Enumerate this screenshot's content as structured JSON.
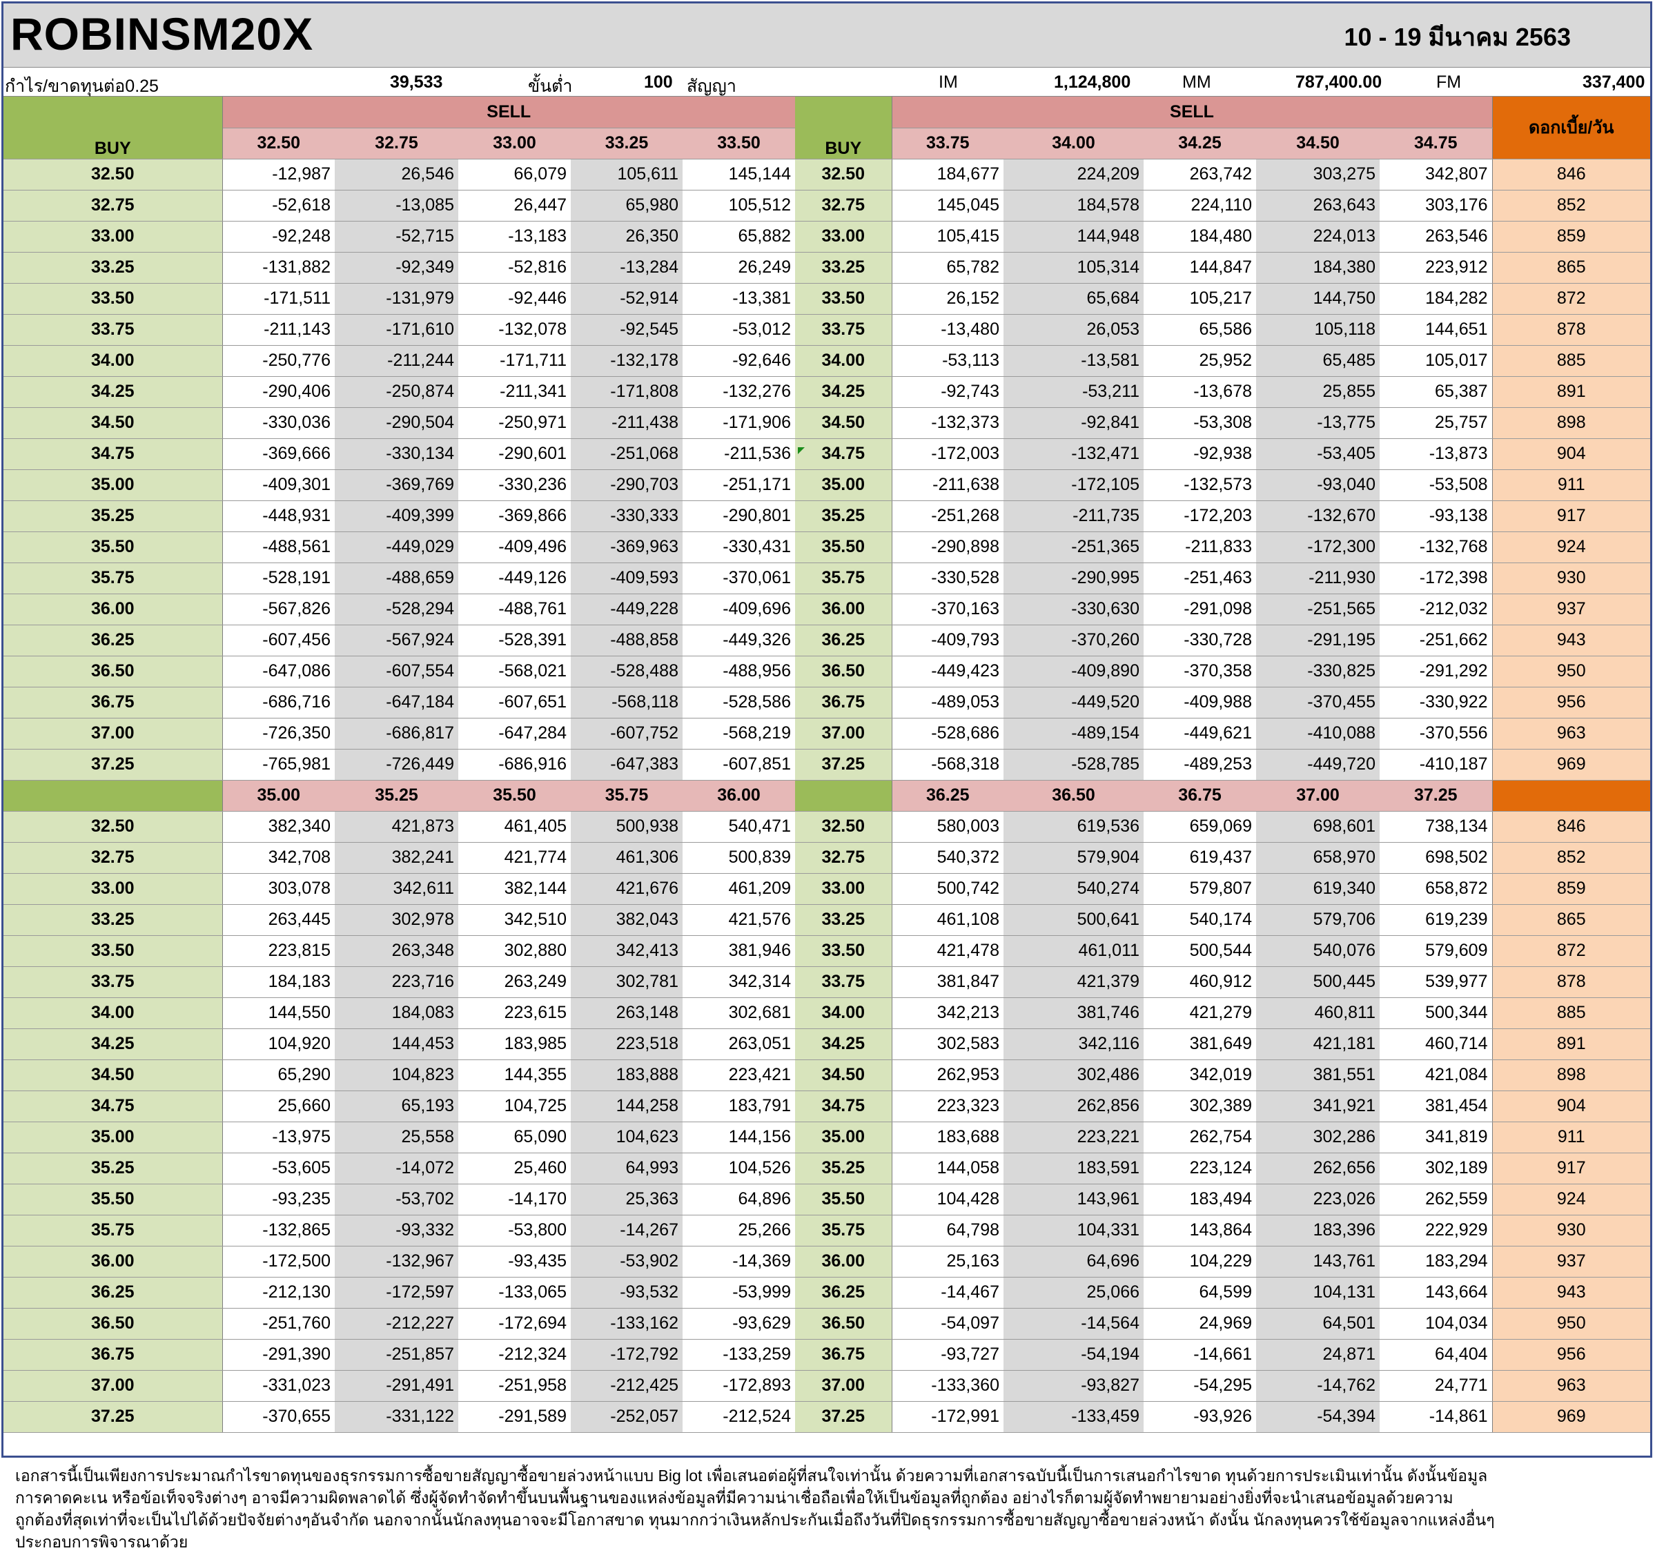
{
  "header": {
    "title": "ROBINSM20X",
    "date_range": "10  -  19 มีนาคม 2563"
  },
  "info": {
    "profit_label": "กำไร/ขาดทุนต่อ0.25",
    "profit_value": "39,533",
    "min_label": "ขั้นต่ำ",
    "min_value": "100",
    "contract_label": "สัญญา",
    "im_label": "IM",
    "im_value": "1,124,800",
    "mm_label": "MM",
    "mm_value": "787,400.00",
    "fm_label": "FM",
    "fm_value": "337,400"
  },
  "table": {
    "buy_label": "BUY",
    "sell_label": "SELL",
    "fee_label": "ดอกเบี้ย/วัน",
    "buy_prices": [
      "32.50",
      "32.75",
      "33.00",
      "33.25",
      "33.50",
      "33.75",
      "34.00",
      "34.25",
      "34.50",
      "34.75",
      "35.00",
      "35.25",
      "35.50",
      "35.75",
      "36.00",
      "36.25",
      "36.50",
      "36.75",
      "37.00",
      "37.25"
    ],
    "fees": [
      "846",
      "852",
      "859",
      "865",
      "872",
      "878",
      "885",
      "891",
      "898",
      "904",
      "911",
      "917",
      "924",
      "930",
      "937",
      "943",
      "950",
      "956",
      "963",
      "969"
    ],
    "top": {
      "sell_left": [
        "32.50",
        "32.75",
        "33.00",
        "33.25",
        "33.50"
      ],
      "sell_right": [
        "33.75",
        "34.00",
        "34.25",
        "34.50",
        "34.75"
      ],
      "rows": [
        [
          "-12,987",
          "26,546",
          "66,079",
          "105,611",
          "145,144",
          "184,677",
          "224,209",
          "263,742",
          "303,275",
          "342,807"
        ],
        [
          "-52,618",
          "-13,085",
          "26,447",
          "65,980",
          "105,512",
          "145,045",
          "184,578",
          "224,110",
          "263,643",
          "303,176"
        ],
        [
          "-92,248",
          "-52,715",
          "-13,183",
          "26,350",
          "65,882",
          "105,415",
          "144,948",
          "184,480",
          "224,013",
          "263,546"
        ],
        [
          "-131,882",
          "-92,349",
          "-52,816",
          "-13,284",
          "26,249",
          "65,782",
          "105,314",
          "144,847",
          "184,380",
          "223,912"
        ],
        [
          "-171,511",
          "-131,979",
          "-92,446",
          "-52,914",
          "-13,381",
          "26,152",
          "65,684",
          "105,217",
          "144,750",
          "184,282"
        ],
        [
          "-211,143",
          "-171,610",
          "-132,078",
          "-92,545",
          "-53,012",
          "-13,480",
          "26,053",
          "65,586",
          "105,118",
          "144,651"
        ],
        [
          "-250,776",
          "-211,244",
          "-171,711",
          "-132,178",
          "-92,646",
          "-53,113",
          "-13,581",
          "25,952",
          "65,485",
          "105,017"
        ],
        [
          "-290,406",
          "-250,874",
          "-211,341",
          "-171,808",
          "-132,276",
          "-92,743",
          "-53,211",
          "-13,678",
          "25,855",
          "65,387"
        ],
        [
          "-330,036",
          "-290,504",
          "-250,971",
          "-211,438",
          "-171,906",
          "-132,373",
          "-92,841",
          "-53,308",
          "-13,775",
          "25,757"
        ],
        [
          "-369,666",
          "-330,134",
          "-290,601",
          "-251,068",
          "-211,536",
          "-172,003",
          "-132,471",
          "-92,938",
          "-53,405",
          "-13,873"
        ],
        [
          "-409,301",
          "-369,769",
          "-330,236",
          "-290,703",
          "-251,171",
          "-211,638",
          "-172,105",
          "-132,573",
          "-93,040",
          "-53,508"
        ],
        [
          "-448,931",
          "-409,399",
          "-369,866",
          "-330,333",
          "-290,801",
          "-251,268",
          "-211,735",
          "-172,203",
          "-132,670",
          "-93,138"
        ],
        [
          "-488,561",
          "-449,029",
          "-409,496",
          "-369,963",
          "-330,431",
          "-290,898",
          "-251,365",
          "-211,833",
          "-172,300",
          "-132,768"
        ],
        [
          "-528,191",
          "-488,659",
          "-449,126",
          "-409,593",
          "-370,061",
          "-330,528",
          "-290,995",
          "-251,463",
          "-211,930",
          "-172,398"
        ],
        [
          "-567,826",
          "-528,294",
          "-488,761",
          "-449,228",
          "-409,696",
          "-370,163",
          "-330,630",
          "-291,098",
          "-251,565",
          "-212,032"
        ],
        [
          "-607,456",
          "-567,924",
          "-528,391",
          "-488,858",
          "-449,326",
          "-409,793",
          "-370,260",
          "-330,728",
          "-291,195",
          "-251,662"
        ],
        [
          "-647,086",
          "-607,554",
          "-568,021",
          "-528,488",
          "-488,956",
          "-449,423",
          "-409,890",
          "-370,358",
          "-330,825",
          "-291,292"
        ],
        [
          "-686,716",
          "-647,184",
          "-607,651",
          "-568,118",
          "-528,586",
          "-489,053",
          "-449,520",
          "-409,988",
          "-370,455",
          "-330,922"
        ],
        [
          "-726,350",
          "-686,817",
          "-647,284",
          "-607,752",
          "-568,219",
          "-528,686",
          "-489,154",
          "-449,621",
          "-410,088",
          "-370,556"
        ],
        [
          "-765,981",
          "-726,449",
          "-686,916",
          "-647,383",
          "-607,851",
          "-568,318",
          "-528,785",
          "-489,253",
          "-449,720",
          "-410,187"
        ]
      ]
    },
    "bottom": {
      "sell_left": [
        "35.00",
        "35.25",
        "35.50",
        "35.75",
        "36.00"
      ],
      "sell_right": [
        "36.25",
        "36.50",
        "36.75",
        "37.00",
        "37.25"
      ],
      "rows": [
        [
          "382,340",
          "421,873",
          "461,405",
          "500,938",
          "540,471",
          "580,003",
          "619,536",
          "659,069",
          "698,601",
          "738,134"
        ],
        [
          "342,708",
          "382,241",
          "421,774",
          "461,306",
          "500,839",
          "540,372",
          "579,904",
          "619,437",
          "658,970",
          "698,502"
        ],
        [
          "303,078",
          "342,611",
          "382,144",
          "421,676",
          "461,209",
          "500,742",
          "540,274",
          "579,807",
          "619,340",
          "658,872"
        ],
        [
          "263,445",
          "302,978",
          "342,510",
          "382,043",
          "421,576",
          "461,108",
          "500,641",
          "540,174",
          "579,706",
          "619,239"
        ],
        [
          "223,815",
          "263,348",
          "302,880",
          "342,413",
          "381,946",
          "421,478",
          "461,011",
          "500,544",
          "540,076",
          "579,609"
        ],
        [
          "184,183",
          "223,716",
          "263,249",
          "302,781",
          "342,314",
          "381,847",
          "421,379",
          "460,912",
          "500,445",
          "539,977"
        ],
        [
          "144,550",
          "184,083",
          "223,615",
          "263,148",
          "302,681",
          "342,213",
          "381,746",
          "421,279",
          "460,811",
          "500,344"
        ],
        [
          "104,920",
          "144,453",
          "183,985",
          "223,518",
          "263,051",
          "302,583",
          "342,116",
          "381,649",
          "421,181",
          "460,714"
        ],
        [
          "65,290",
          "104,823",
          "144,355",
          "183,888",
          "223,421",
          "262,953",
          "302,486",
          "342,019",
          "381,551",
          "421,084"
        ],
        [
          "25,660",
          "65,193",
          "104,725",
          "144,258",
          "183,791",
          "223,323",
          "262,856",
          "302,389",
          "341,921",
          "381,454"
        ],
        [
          "-13,975",
          "25,558",
          "65,090",
          "104,623",
          "144,156",
          "183,688",
          "223,221",
          "262,754",
          "302,286",
          "341,819"
        ],
        [
          "-53,605",
          "-14,072",
          "25,460",
          "64,993",
          "104,526",
          "144,058",
          "183,591",
          "223,124",
          "262,656",
          "302,189"
        ],
        [
          "-93,235",
          "-53,702",
          "-14,170",
          "25,363",
          "64,896",
          "104,428",
          "143,961",
          "183,494",
          "223,026",
          "262,559"
        ],
        [
          "-132,865",
          "-93,332",
          "-53,800",
          "-14,267",
          "25,266",
          "64,798",
          "104,331",
          "143,864",
          "183,396",
          "222,929"
        ],
        [
          "-172,500",
          "-132,967",
          "-93,435",
          "-53,902",
          "-14,369",
          "25,163",
          "64,696",
          "104,229",
          "143,761",
          "183,294"
        ],
        [
          "-212,130",
          "-172,597",
          "-133,065",
          "-93,532",
          "-53,999",
          "-14,467",
          "25,066",
          "64,599",
          "104,131",
          "143,664"
        ],
        [
          "-251,760",
          "-212,227",
          "-172,694",
          "-133,162",
          "-93,629",
          "-54,097",
          "-14,564",
          "24,969",
          "64,501",
          "104,034"
        ],
        [
          "-291,390",
          "-251,857",
          "-212,324",
          "-172,792",
          "-133,259",
          "-93,727",
          "-54,194",
          "-14,661",
          "24,871",
          "64,404"
        ],
        [
          "-331,023",
          "-291,491",
          "-251,958",
          "-212,425",
          "-172,893",
          "-133,360",
          "-93,827",
          "-54,295",
          "-14,762",
          "24,771"
        ],
        [
          "-370,655",
          "-331,122",
          "-291,589",
          "-252,057",
          "-212,524",
          "-172,991",
          "-133,459",
          "-93,926",
          "-54,394",
          "-14,861"
        ]
      ]
    }
  },
  "disclaimer": [
    "เอกสารนี้เป็นเพียงการประมาณกำไรขาดทุนของธุรกรรมการซื้อขายสัญญาซื้อขายล่วงหน้าแบบ  Big lot เพื่อเสนอต่อผู้ที่สนใจเท่านั้น  ด้วยความที่เอกสารฉบับนี้เป็นการเสนอกำไรขาด ทุนด้วยการประเมินเท่านั้น  ดังนั้นข้อมูล",
    "การคาดคะเน  หรือข้อเท็จจริงต่างๆ  อาจมีความผิดพลาดได้  ซึ่งผู้จัดทำจัดทำขึ้นบนพื้นฐานของแหล่งข้อมูลที่มีความน่าเชื่อถือเพื่อให้เป็นข้อมูลที่ถูกต้อง  อย่างไรก็ตามผู้จัดทำพยายามอย่างยิ่งที่จะนำเสนอข้อมูลด้วยความ",
    "ถูกต้องที่สุดเท่าที่จะเป็นไปได้ด้วยปัจจัยต่างๆอันจำกัด  นอกจากนั้นนักลงทุนอาจจะมีโอกาสขาด ทุนมากกว่าเงินหลักประกันเมื่อถึงวันที่ปิดธุรกรรมการซื้อขายสัญญาซื้อขายล่วงหน้า  ดังนั้น นักลงทุนควรใช้ข้อมูลจากแหล่งอื่นๆ",
    "ประกอบการพิจารณาด้วย"
  ]
}
